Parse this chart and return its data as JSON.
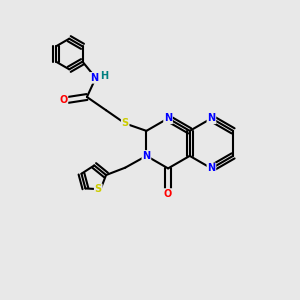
{
  "bg_color": "#e8e8e8",
  "atom_colors": {
    "N": "#0000ff",
    "O": "#ff0000",
    "S": "#cccc00",
    "C": "#000000",
    "H": "#008080"
  }
}
